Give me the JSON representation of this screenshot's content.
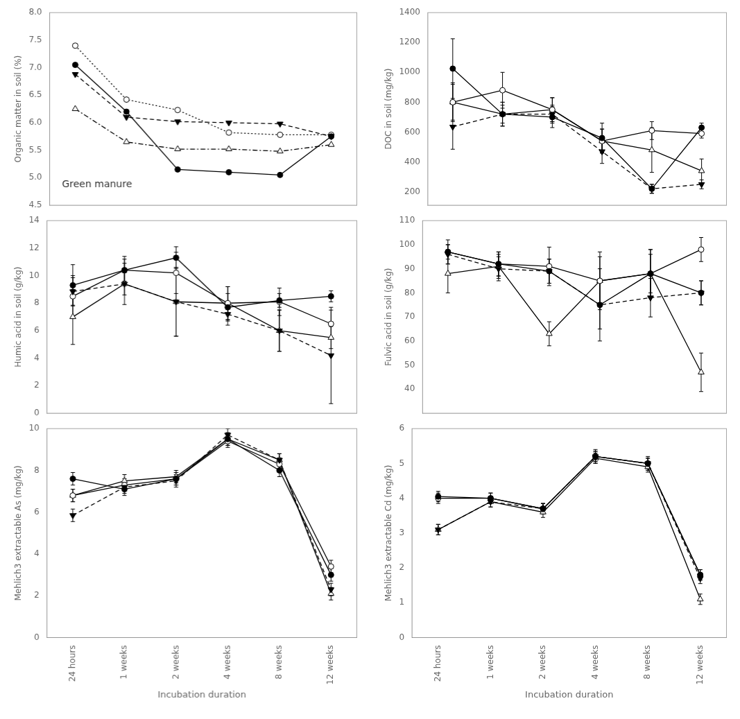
{
  "chart_data": [
    {
      "type": "line",
      "ylabel": "Organic matter in soil (%)",
      "annotation": "Green manure",
      "categories": [
        "24 hours",
        "1 weeks",
        "2 weeks",
        "4 weeks",
        "8 weeks",
        "12 weeks"
      ],
      "ylim": [
        4.5,
        8.0
      ],
      "yticks": [
        4.5,
        {
          "value": 5.0,
          "label": "5.0"
        },
        5.5,
        {
          "value": 6.0,
          "label": "6.0"
        },
        6.5,
        {
          "value": 7.0,
          "label": "7.0"
        },
        7.5,
        {
          "value": 8.0,
          "label": "8.0"
        }
      ],
      "grid": false,
      "tick_labels": "y",
      "series": [
        {
          "values": [
            7.05,
            6.2,
            5.15,
            5.1,
            5.05,
            5.75
          ],
          "marker": "circle",
          "line_style": "solid",
          "color": "black"
        },
        {
          "values": [
            6.88,
            6.1,
            6.02,
            6.0,
            5.98,
            5.75
          ],
          "marker": "triangle_down",
          "line_style": "dashed",
          "color": "black"
        },
        {
          "values": [
            7.4,
            6.42,
            6.23,
            5.82,
            5.78,
            5.78
          ],
          "marker": "circle_open",
          "line_style": "dotted",
          "color": "black"
        },
        {
          "values": [
            6.25,
            5.65,
            5.52,
            5.52,
            5.48,
            5.6
          ],
          "marker": "triangle_open",
          "line_style": "dashdot",
          "color": "black"
        }
      ]
    },
    {
      "type": "line",
      "ylabel": "DOC in soil (mg/kg)",
      "categories": [
        "24 hours",
        "1 weeks",
        "2 weeks",
        "4 weeks",
        "8 weeks",
        "12 weeks"
      ],
      "ylim": [
        110,
        1400
      ],
      "yticks": [
        200,
        400,
        600,
        800,
        1000,
        1200,
        1400
      ],
      "grid": false,
      "tick_labels": "y",
      "series": [
        {
          "values": [
            1025,
            720,
            700,
            560,
            220,
            630
          ],
          "errors": [
            200,
            80,
            70,
            100,
            30,
            30
          ],
          "marker": "circle",
          "line_style": "solid",
          "color": "black"
        },
        {
          "values": [
            635,
            720,
            720,
            470,
            220,
            250
          ],
          "errors": [
            150,
            60,
            60,
            80,
            30,
            30
          ],
          "marker": "triangle_down",
          "line_style": "dashed",
          "color": "black"
        },
        {
          "values": [
            800,
            880,
            750,
            540,
            610,
            590
          ],
          "errors": [
            130,
            120,
            80,
            80,
            60,
            30
          ],
          "marker": "circle_open",
          "line_style": "solid",
          "color": "black"
        },
        {
          "values": [
            800,
            720,
            750,
            540,
            480,
            340
          ],
          "errors": [
            120,
            80,
            80,
            80,
            150,
            80
          ],
          "marker": "triangle_open",
          "line_style": "solid",
          "color": "black"
        }
      ]
    },
    {
      "type": "line",
      "ylabel": "Humic acid in soil (g/kg)",
      "categories": [
        "24 hours",
        "1 weeks",
        "2 weeks",
        "4 weeks",
        "8 weeks",
        "12 weeks"
      ],
      "ylim": [
        0,
        14
      ],
      "yticks": [
        0,
        2,
        4,
        6,
        8,
        10,
        12,
        14
      ],
      "grid": false,
      "tick_labels": "y",
      "series": [
        {
          "values": [
            9.3,
            10.4,
            11.3,
            7.7,
            8.2,
            8.5
          ],
          "errors": [
            1.5,
            0.8,
            0.8,
            1.0,
            0.5,
            0.4
          ],
          "marker": "circle",
          "line_style": "solid",
          "color": "black"
        },
        {
          "values": [
            8.85,
            9.4,
            8.1,
            7.2,
            6.0,
            4.2
          ],
          "errors": [
            1.0,
            0.8,
            2.5,
            0.8,
            1.5,
            3.5
          ],
          "marker": "triangle_down",
          "line_style": "dashed",
          "color": "black"
        },
        {
          "values": [
            8.5,
            10.4,
            10.2,
            8.0,
            8.1,
            6.5
          ],
          "errors": [
            1.5,
            1.0,
            1.5,
            1.2,
            1.0,
            1.0
          ],
          "marker": "circle_open",
          "line_style": "solid",
          "color": "black"
        },
        {
          "values": [
            7.0,
            9.4,
            8.1,
            8.0,
            6.0,
            5.5
          ],
          "errors": [
            2.0,
            1.5,
            2.5,
            1.2,
            1.5,
            0.8
          ],
          "marker": "triangle_open",
          "line_style": "solid",
          "color": "black"
        }
      ]
    },
    {
      "type": "line",
      "ylabel": "Fulvic acid in soil (g/kg)",
      "categories": [
        "24 hours",
        "1 weeks",
        "2 weeks",
        "4 weeks",
        "8 weeks",
        "12 weeks"
      ],
      "ylim": [
        30,
        110
      ],
      "yticks": [
        40,
        50,
        60,
        70,
        80,
        90,
        100,
        110
      ],
      "grid": false,
      "tick_labels": "y",
      "series": [
        {
          "values": [
            97,
            92,
            89,
            75,
            88,
            80
          ],
          "errors": [
            3,
            5,
            5,
            15,
            8,
            5
          ],
          "marker": "circle",
          "line_style": "solid",
          "color": "black"
        },
        {
          "values": [
            96,
            90,
            89,
            75,
            78,
            80
          ],
          "errors": [
            4,
            5,
            5,
            10,
            8,
            5
          ],
          "marker": "triangle_down",
          "line_style": "dashed",
          "color": "black"
        },
        {
          "values": [
            97,
            92,
            91,
            85,
            88,
            98
          ],
          "errors": [
            5,
            5,
            8,
            12,
            10,
            5
          ],
          "marker": "circle_open",
          "line_style": "solid",
          "color": "black"
        },
        {
          "values": [
            88,
            91,
            63,
            85,
            88,
            47
          ],
          "errors": [
            8,
            5,
            5,
            10,
            10,
            8
          ],
          "marker": "triangle_open",
          "line_style": "solid",
          "color": "black"
        }
      ]
    },
    {
      "type": "line",
      "ylabel": "Mehlich3 extractable As (mg/kg)",
      "xlabel": "Incubation duration",
      "categories": [
        "24 hours",
        "1 weeks",
        "2 weeks",
        "4 weeks",
        "8 weeks",
        "12 weeks"
      ],
      "ylim": [
        0,
        10
      ],
      "yticks": [
        0,
        2,
        4,
        6,
        8,
        10
      ],
      "grid": false,
      "series": [
        {
          "values": [
            7.6,
            7.1,
            7.6,
            9.5,
            8.0,
            3.0
          ],
          "errors": [
            0.3,
            0.3,
            0.3,
            0.3,
            0.3,
            0.3
          ],
          "marker": "circle",
          "line_style": "solid",
          "color": "black"
        },
        {
          "values": [
            5.85,
            7.2,
            7.5,
            9.7,
            8.5,
            2.3
          ],
          "errors": [
            0.3,
            0.3,
            0.3,
            0.3,
            0.3,
            0.3
          ],
          "marker": "triangle_down",
          "line_style": "dashed",
          "color": "black"
        },
        {
          "values": [
            6.8,
            7.3,
            7.6,
            9.4,
            8.3,
            3.4
          ],
          "errors": [
            0.3,
            0.3,
            0.3,
            0.3,
            0.3,
            0.3
          ],
          "marker": "circle_open",
          "line_style": "solid",
          "color": "black"
        },
        {
          "values": [
            6.8,
            7.5,
            7.7,
            9.5,
            8.5,
            2.1
          ],
          "errors": [
            0.3,
            0.3,
            0.3,
            0.3,
            0.3,
            0.3
          ],
          "marker": "triangle_open",
          "line_style": "solid",
          "color": "black"
        }
      ]
    },
    {
      "type": "line",
      "ylabel": "Mehlich3 extractable Cd (mg/kg)",
      "xlabel": "Incubation duration",
      "categories": [
        "24 hours",
        "1 weeks",
        "2 weeks",
        "4 weeks",
        "8 weeks",
        "12 weeks"
      ],
      "ylim": [
        0,
        6
      ],
      "yticks": [
        0,
        1,
        2,
        3,
        4,
        5,
        6
      ],
      "grid": false,
      "series": [
        {
          "values": [
            4.05,
            4.0,
            3.7,
            5.2,
            5.0,
            1.8
          ],
          "errors": [
            0.15,
            0.15,
            0.15,
            0.2,
            0.2,
            0.15
          ],
          "marker": "circle",
          "line_style": "solid",
          "color": "black"
        },
        {
          "values": [
            3.1,
            3.9,
            3.7,
            5.2,
            5.0,
            1.7
          ],
          "errors": [
            0.15,
            0.15,
            0.15,
            0.15,
            0.15,
            0.15
          ],
          "marker": "triangle_down",
          "line_style": "dashed",
          "color": "black"
        },
        {
          "values": [
            4.0,
            4.0,
            3.7,
            5.2,
            5.0,
            1.8
          ],
          "errors": [
            0.15,
            0.15,
            0.15,
            0.15,
            0.15,
            0.15
          ],
          "marker": "circle_open",
          "line_style": "solid",
          "color": "black"
        },
        {
          "values": [
            3.1,
            3.9,
            3.6,
            5.15,
            4.9,
            1.1
          ],
          "errors": [
            0.15,
            0.15,
            0.15,
            0.15,
            0.15,
            0.15
          ],
          "marker": "triangle_open",
          "line_style": "solid",
          "color": "black"
        }
      ]
    }
  ]
}
